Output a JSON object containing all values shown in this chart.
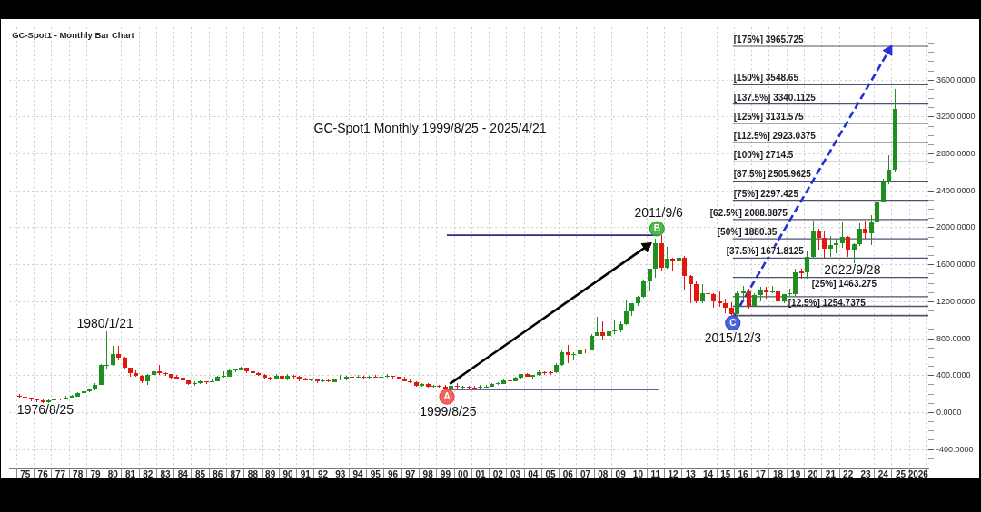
{
  "chart_data": {
    "type": "candlestick",
    "title": "GC-Spot1 - Monthly Bar Chart",
    "subtitle": "GC-Spot1 Monthly 1999/8/25 - 2025/4/21",
    "x": [
      "1975-03",
      "1975-07",
      "1975-11",
      "1976-03",
      "1976-07",
      "1976-11",
      "1977-03",
      "1977-07",
      "1977-11",
      "1978-03",
      "1978-07",
      "1978-11",
      "1979-03",
      "1979-07",
      "1979-11",
      "1980-03",
      "1980-07",
      "1980-11",
      "1981-03",
      "1981-07",
      "1981-11",
      "1982-03",
      "1982-07",
      "1982-11",
      "1983-03",
      "1983-07",
      "1983-11",
      "1984-03",
      "1984-07",
      "1984-11",
      "1985-03",
      "1985-07",
      "1985-11",
      "1986-03",
      "1986-07",
      "1986-11",
      "1987-03",
      "1987-07",
      "1987-11",
      "1988-03",
      "1988-07",
      "1988-11",
      "1989-03",
      "1989-07",
      "1989-11",
      "1990-03",
      "1990-07",
      "1990-11",
      "1991-03",
      "1991-07",
      "1991-11",
      "1992-03",
      "1992-07",
      "1992-11",
      "1993-03",
      "1993-07",
      "1993-11",
      "1994-03",
      "1994-07",
      "1994-11",
      "1995-03",
      "1995-07",
      "1995-11",
      "1996-03",
      "1996-07",
      "1996-11",
      "1997-03",
      "1997-07",
      "1997-11",
      "1998-03",
      "1998-07",
      "1998-11",
      "1999-03",
      "1999-07",
      "1999-11",
      "2000-03",
      "2000-07",
      "2000-11",
      "2001-03",
      "2001-07",
      "2001-11",
      "2002-03",
      "2002-07",
      "2002-11",
      "2003-03",
      "2003-07",
      "2003-11",
      "2004-03",
      "2004-07",
      "2004-11",
      "2005-03",
      "2005-07",
      "2005-11",
      "2006-03",
      "2006-07",
      "2006-11",
      "2007-03",
      "2007-07",
      "2007-11",
      "2008-03",
      "2008-07",
      "2008-11",
      "2009-03",
      "2009-07",
      "2009-11",
      "2010-03",
      "2010-07",
      "2010-11",
      "2011-03",
      "2011-07",
      "2011-11",
      "2012-03",
      "2012-07",
      "2012-11",
      "2013-03",
      "2013-07",
      "2013-11",
      "2014-03",
      "2014-07",
      "2014-11",
      "2015-03",
      "2015-07",
      "2015-11",
      "2016-03",
      "2016-07",
      "2016-11",
      "2017-03",
      "2017-07",
      "2017-11",
      "2018-03",
      "2018-07",
      "2018-11",
      "2019-03",
      "2019-07",
      "2019-11",
      "2020-03",
      "2020-07",
      "2020-11",
      "2021-03",
      "2021-07",
      "2021-11",
      "2022-03",
      "2022-07",
      "2022-11",
      "2023-03",
      "2023-07",
      "2023-11",
      "2024-03",
      "2024-07",
      "2024-11",
      "2025-03"
    ],
    "ohlc": [
      [
        183,
        198,
        165,
        167
      ],
      [
        168,
        172,
        147,
        158
      ],
      [
        162,
        165,
        125,
        140
      ],
      [
        140,
        141,
        113,
        128
      ],
      [
        128,
        143,
        104,
        110
      ],
      [
        110,
        149,
        107,
        134
      ],
      [
        134,
        164,
        130,
        149
      ],
      [
        152,
        156,
        130,
        142
      ],
      [
        145,
        180,
        145,
        165
      ],
      [
        165,
        190,
        160,
        177
      ],
      [
        171,
        223,
        170,
        208
      ],
      [
        208,
        245,
        193,
        226
      ],
      [
        226,
        261,
        218,
        246
      ],
      [
        246,
        315,
        245,
        300
      ],
      [
        300,
        527,
        300,
        512
      ],
      [
        512,
        875,
        470,
        517
      ],
      [
        517,
        720,
        505,
        630
      ],
      [
        630,
        725,
        560,
        590
      ],
      [
        590,
        600,
        470,
        485
      ],
      [
        485,
        490,
        391,
        425
      ],
      [
        425,
        460,
        390,
        400
      ],
      [
        400,
        405,
        315,
        335
      ],
      [
        335,
        415,
        297,
        410
      ],
      [
        410,
        490,
        395,
        450
      ],
      [
        450,
        512,
        405,
        430
      ],
      [
        430,
        440,
        400,
        415
      ],
      [
        415,
        420,
        365,
        380
      ],
      [
        388,
        405,
        365,
        372
      ],
      [
        378,
        395,
        335,
        345
      ],
      [
        345,
        350,
        295,
        310
      ],
      [
        310,
        340,
        285,
        322
      ],
      [
        322,
        345,
        305,
        335
      ],
      [
        336,
        340,
        310,
        325
      ],
      [
        326,
        358,
        325,
        343
      ],
      [
        343,
        400,
        335,
        385
      ],
      [
        385,
        445,
        378,
        395
      ],
      [
        390,
        470,
        390,
        455
      ],
      [
        452,
        470,
        440,
        462
      ],
      [
        460,
        500,
        455,
        485
      ],
      [
        485,
        487,
        430,
        450
      ],
      [
        450,
        460,
        415,
        430
      ],
      [
        430,
        435,
        395,
        410
      ],
      [
        410,
        415,
        365,
        380
      ],
      [
        380,
        385,
        345,
        360
      ],
      [
        360,
        420,
        355,
        401
      ],
      [
        401,
        425,
        365,
        368
      ],
      [
        368,
        415,
        345,
        395
      ],
      [
        395,
        410,
        370,
        385
      ],
      [
        385,
        395,
        342,
        357
      ],
      [
        360,
        375,
        345,
        350
      ],
      [
        352,
        368,
        340,
        362
      ],
      [
        360,
        362,
        323,
        338
      ],
      [
        336,
        357,
        328,
        346
      ],
      [
        346,
        357,
        328,
        334
      ],
      [
        333,
        370,
        326,
        355
      ],
      [
        355,
        408,
        350,
        372
      ],
      [
        372,
        395,
        345,
        390
      ],
      [
        390,
        397,
        362,
        377
      ],
      [
        377,
        405,
        375,
        390
      ],
      [
        392,
        400,
        368,
        380
      ],
      [
        380,
        397,
        368,
        392
      ],
      [
        392,
        405,
        378,
        381
      ],
      [
        381,
        402,
        378,
        391
      ],
      [
        385,
        416,
        380,
        397
      ],
      [
        397,
        400,
        372,
        384
      ],
      [
        387,
        390,
        354,
        369
      ],
      [
        369,
        384,
        338,
        340
      ],
      [
        340,
        355,
        318,
        325
      ],
      [
        325,
        340,
        283,
        290
      ],
      [
        290,
        316,
        275,
        308
      ],
      [
        308,
        323,
        272,
        275
      ],
      [
        275,
        303,
        272,
        288
      ],
      [
        290,
        303,
        274,
        279
      ],
      [
        283,
        298,
        252,
        255
      ],
      [
        255,
        338,
        254,
        290
      ],
      [
        290,
        316,
        262,
        276
      ],
      [
        272,
        292,
        262,
        283
      ],
      [
        280,
        292,
        260,
        270
      ],
      [
        273,
        287,
        255,
        262
      ],
      [
        265,
        297,
        255,
        277
      ],
      [
        272,
        295,
        268,
        284
      ],
      [
        277,
        323,
        276,
        308
      ],
      [
        305,
        330,
        298,
        318
      ],
      [
        312,
        362,
        310,
        347
      ],
      [
        347,
        390,
        320,
        336
      ],
      [
        336,
        390,
        335,
        375
      ],
      [
        375,
        417,
        360,
        415
      ],
      [
        415,
        430,
        385,
        388
      ],
      [
        388,
        410,
        372,
        407
      ],
      [
        407,
        455,
        400,
        438
      ],
      [
        440,
        448,
        410,
        428
      ],
      [
        438,
        445,
        412,
        426
      ],
      [
        433,
        538,
        430,
        513
      ],
      [
        513,
        668,
        510,
        653
      ],
      [
        653,
        732,
        540,
        623
      ],
      [
        623,
        650,
        560,
        635
      ],
      [
        635,
        700,
        605,
        680
      ],
      [
        685,
        695,
        640,
        668
      ],
      [
        672,
        845,
        670,
        834
      ],
      [
        834,
        1033,
        830,
        870
      ],
      [
        870,
        990,
        780,
        830
      ],
      [
        830,
        935,
        681,
        880
      ],
      [
        880,
        1007,
        850,
        885
      ],
      [
        885,
        990,
        865,
        955
      ],
      [
        955,
        1227,
        950,
        1095
      ],
      [
        1095,
        1180,
        1045,
        1180
      ],
      [
        1180,
        1265,
        1155,
        1248
      ],
      [
        1248,
        1436,
        1245,
        1420
      ],
      [
        1420,
        1557,
        1309,
        1556
      ],
      [
        1556,
        1877,
        1462,
        1828
      ],
      [
        1828,
        1920,
        1535,
        1565
      ],
      [
        1565,
        1790,
        1560,
        1664
      ],
      [
        1664,
        1680,
        1527,
        1648
      ],
      [
        1648,
        1796,
        1635,
        1675
      ],
      [
        1675,
        1697,
        1321,
        1475
      ],
      [
        1475,
        1488,
        1180,
        1395
      ],
      [
        1395,
        1434,
        1180,
        1202
      ],
      [
        1202,
        1392,
        1182,
        1288
      ],
      [
        1295,
        1345,
        1240,
        1280
      ],
      [
        1287,
        1290,
        1131,
        1200
      ],
      [
        1200,
        1307,
        1142,
        1184
      ],
      [
        1184,
        1232,
        1077,
        1135
      ],
      [
        1135,
        1192,
        1046,
        1061
      ],
      [
        1061,
        1310,
        1061,
        1292
      ],
      [
        1292,
        1375,
        1200,
        1308
      ],
      [
        1308,
        1337,
        1123,
        1151
      ],
      [
        1151,
        1296,
        1146,
        1268
      ],
      [
        1268,
        1358,
        1204,
        1320
      ],
      [
        1320,
        1357,
        1236,
        1302
      ],
      [
        1302,
        1366,
        1290,
        1316
      ],
      [
        1316,
        1326,
        1160,
        1201
      ],
      [
        1201,
        1284,
        1180,
        1282
      ],
      [
        1278,
        1346,
        1262,
        1292
      ],
      [
        1284,
        1555,
        1266,
        1520
      ],
      [
        1525,
        1557,
        1446,
        1510
      ],
      [
        1517,
        1747,
        1451,
        1686
      ],
      [
        1686,
        2075,
        1670,
        1968
      ],
      [
        1968,
        1993,
        1764,
        1895
      ],
      [
        1895,
        1960,
        1677,
        1770
      ],
      [
        1770,
        1916,
        1690,
        1813
      ],
      [
        1813,
        1877,
        1721,
        1829
      ],
      [
        1829,
        2070,
        1780,
        1897
      ],
      [
        1897,
        1909,
        1681,
        1765
      ],
      [
        1765,
        1830,
        1615,
        1824
      ],
      [
        1824,
        2048,
        1805,
        1990
      ],
      [
        1990,
        2079,
        1885,
        1940
      ],
      [
        1940,
        2135,
        1810,
        2063
      ],
      [
        2063,
        2431,
        1984,
        2286
      ],
      [
        2286,
        2531,
        2277,
        2503
      ],
      [
        2503,
        2790,
        2471,
        2624
      ],
      [
        2624,
        3500,
        2614,
        3290
      ]
    ],
    "colors": [
      "#e3170d",
      "#e3170d",
      "#e3170d",
      "#e3170d",
      "#e3170d",
      "#1f8f1f",
      "#1f8f1f",
      "#e3170d",
      "#1f8f1f",
      "#1f8f1f",
      "#1f8f1f",
      "#1f8f1f",
      "#1f8f1f",
      "#1f8f1f",
      "#1f8f1f",
      "#1f8f1f",
      "#1f8f1f",
      "#e3170d",
      "#e3170d",
      "#e3170d",
      "#e3170d",
      "#e3170d",
      "#1f8f1f",
      "#1f8f1f",
      "#e3170d",
      "#e3170d",
      "#e3170d",
      "#e3170d",
      "#e3170d",
      "#e3170d",
      "#1f8f1f",
      "#1f8f1f",
      "#e3170d",
      "#1f8f1f",
      "#1f8f1f",
      "#1f8f1f",
      "#1f8f1f",
      "#1f8f1f",
      "#1f8f1f",
      "#e3170d",
      "#e3170d",
      "#e3170d",
      "#e3170d",
      "#e3170d",
      "#1f8f1f",
      "#e3170d",
      "#1f8f1f",
      "#e3170d",
      "#e3170d",
      "#e3170d",
      "#1f8f1f",
      "#e3170d",
      "#1f8f1f",
      "#e3170d",
      "#1f8f1f",
      "#1f8f1f",
      "#1f8f1f",
      "#e3170d",
      "#1f8f1f",
      "#e3170d",
      "#1f8f1f",
      "#e3170d",
      "#1f8f1f",
      "#1f8f1f",
      "#e3170d",
      "#e3170d",
      "#e3170d",
      "#e3170d",
      "#e3170d",
      "#1f8f1f",
      "#e3170d",
      "#1f8f1f",
      "#e3170d",
      "#e3170d",
      "#1f8f1f",
      "#e3170d",
      "#1f8f1f",
      "#e3170d",
      "#e3170d",
      "#1f8f1f",
      "#1f8f1f",
      "#1f8f1f",
      "#1f8f1f",
      "#1f8f1f",
      "#e3170d",
      "#1f8f1f",
      "#1f8f1f",
      "#e3170d",
      "#1f8f1f",
      "#1f8f1f",
      "#e3170d",
      "#e3170d",
      "#1f8f1f",
      "#1f8f1f",
      "#e3170d",
      "#1f8f1f",
      "#1f8f1f",
      "#e3170d",
      "#1f8f1f",
      "#1f8f1f",
      "#e3170d",
      "#1f8f1f",
      "#1f8f1f",
      "#1f8f1f",
      "#1f8f1f",
      "#1f8f1f",
      "#1f8f1f",
      "#1f8f1f",
      "#1f8f1f",
      "#1f8f1f",
      "#e3170d",
      "#1f8f1f",
      "#e3170d",
      "#1f8f1f",
      "#e3170d",
      "#e3170d",
      "#e3170d",
      "#1f8f1f",
      "#e3170d",
      "#e3170d",
      "#e3170d",
      "#e3170d",
      "#e3170d",
      "#1f8f1f",
      "#1f8f1f",
      "#e3170d",
      "#1f8f1f",
      "#1f8f1f",
      "#e3170d",
      "#1f8f1f",
      "#e3170d",
      "#1f8f1f",
      "#1f8f1f",
      "#1f8f1f",
      "#e3170d",
      "#1f8f1f",
      "#1f8f1f",
      "#e3170d",
      "#e3170d",
      "#1f8f1f",
      "#1f8f1f",
      "#1f8f1f",
      "#e3170d",
      "#1f8f1f",
      "#1f8f1f",
      "#e3170d",
      "#1f8f1f",
      "#1f8f1f",
      "#1f8f1f",
      "#1f8f1f",
      "#1f8f1f"
    ],
    "series": [
      {
        "type": "line",
        "x": [
          "1999-08",
          "2011-09"
        ],
        "values": [
          1920,
          1920
        ],
        "color": "#2a2a80"
      },
      {
        "type": "line",
        "x": [
          "1999-08",
          "2011-09"
        ],
        "values": [
          250,
          250
        ],
        "color": "#2a2a80"
      },
      {
        "type": "line",
        "x": [
          "1999-10",
          "2011-01"
        ],
        "values": [
          310,
          1800
        ],
        "color": "#000000",
        "marker": "triangle"
      },
      {
        "type": "line",
        "x": [
          "2016-01",
          "2024-11"
        ],
        "values": [
          1050,
          3920
        ],
        "color": "#2431d6",
        "line_style": "dashed",
        "marker": "triangle"
      },
      {
        "type": "line",
        "name": "[175%] 3965.725",
        "x": [
          "2015-12",
          "2027-02"
        ],
        "values": [
          3965.725,
          3965.725
        ],
        "color": "#50506e"
      },
      {
        "type": "line",
        "name": "[150%] 3548.65",
        "x": [
          "2015-12",
          "2027-02"
        ],
        "values": [
          3548.65,
          3548.65
        ],
        "color": "#50506e"
      },
      {
        "type": "line",
        "name": "[137.5%] 3340.1125",
        "x": [
          "2015-12",
          "2027-02"
        ],
        "values": [
          3340.1125,
          3340.1125
        ],
        "color": "#50506e"
      },
      {
        "type": "line",
        "name": "[125%] 3131.575",
        "x": [
          "2015-12",
          "2027-02"
        ],
        "values": [
          3131.575,
          3131.575
        ],
        "color": "#50506e"
      },
      {
        "type": "line",
        "name": "[112.5%] 2923.0375",
        "x": [
          "2015-12",
          "2027-02"
        ],
        "values": [
          2923.0375,
          2923.0375
        ],
        "color": "#50506e"
      },
      {
        "type": "line",
        "name": "[100%] 2714.5",
        "x": [
          "2015-12",
          "2027-02"
        ],
        "values": [
          2714.5,
          2714.5
        ],
        "color": "#50506e"
      },
      {
        "type": "line",
        "name": "[87.5%] 2505.9625",
        "x": [
          "2015-12",
          "2027-02"
        ],
        "values": [
          2505.9625,
          2505.9625
        ],
        "color": "#50506e"
      },
      {
        "type": "line",
        "name": "[75%] 2297.425",
        "x": [
          "2015-12",
          "2027-02"
        ],
        "values": [
          2297.425,
          2297.425
        ],
        "color": "#50506e"
      },
      {
        "type": "line",
        "name": "[62.5%] 2088.8875",
        "x": [
          "2015-12",
          "2027-02"
        ],
        "values": [
          2088.8875,
          2088.8875
        ],
        "color": "#50506e"
      },
      {
        "type": "line",
        "name": "[50%] 1880.35",
        "x": [
          "2015-12",
          "2027-02"
        ],
        "values": [
          1880.35,
          1880.35
        ],
        "color": "#50506e"
      },
      {
        "type": "line",
        "name": "[37.5%] 1671.8125",
        "x": [
          "2015-12",
          "2027-02"
        ],
        "values": [
          1671.8125,
          1671.8125
        ],
        "color": "#50506e"
      },
      {
        "type": "line",
        "name": "[25%] 1463.275",
        "x": [
          "2015-12",
          "2027-02"
        ],
        "values": [
          1463.275,
          1463.275
        ],
        "color": "#50506e"
      },
      {
        "type": "line",
        "name": "[12.5%] 1254.7375",
        "x": [
          "2015-12",
          "2027-02"
        ],
        "values": [
          1254.7375,
          1254.7375
        ],
        "color": "#50506e"
      },
      {
        "type": "line",
        "x": [
          "2015-12",
          "2027-02"
        ],
        "values": [
          1150,
          1150
        ],
        "color": "#50506e"
      },
      {
        "type": "line",
        "x": [
          "2015-12",
          "2027-02"
        ],
        "values": [
          1050,
          1050
        ],
        "color": "#50506e"
      },
      {
        "type": "scatter",
        "x": [
          "1999-08",
          "2011-08",
          "2015-12"
        ],
        "values": [
          170,
          1990,
          970
        ],
        "colors": [
          "#f04848",
          "#30a830",
          "#3048d0"
        ],
        "marker": "circle"
      }
    ],
    "annotations": [
      {
        "text": "1976/8/25",
        "x": "1976-08-25",
        "y": 104
      },
      {
        "text": "1980/1/21",
        "x": "1980-01-21",
        "y": 875
      },
      {
        "text": "1999/8/25",
        "x": "1999-08-25",
        "y": 252
      },
      {
        "text": "2011/9/6",
        "x": "2011-09-06",
        "y": 1920
      },
      {
        "text": "2015/12/3",
        "x": "2015-12-03",
        "y": 1046
      },
      {
        "text": "2022/9/28",
        "x": "2022-09-28",
        "y": 1615
      },
      {
        "text": "A",
        "x": "1999-08",
        "y": 170
      },
      {
        "text": "B",
        "x": "2011-08",
        "y": 1990
      },
      {
        "text": "C",
        "x": "2015-12",
        "y": 970
      }
    ],
    "xlim": [
      "1974-08",
      "2027-02"
    ],
    "xticks": [
      {
        "value": "1975-07",
        "label": "75"
      },
      {
        "value": "1976-07",
        "label": "76"
      },
      {
        "value": "1977-07",
        "label": "77"
      },
      {
        "value": "1978-07",
        "label": "78"
      },
      {
        "value": "1979-07",
        "label": "79"
      },
      {
        "value": "1980-07",
        "label": "80"
      },
      {
        "value": "1981-07",
        "label": "81"
      },
      {
        "value": "1982-07",
        "label": "82"
      },
      {
        "value": "1983-07",
        "label": "83"
      },
      {
        "value": "1984-07",
        "label": "84"
      },
      {
        "value": "1985-07",
        "label": "85"
      },
      {
        "value": "1986-07",
        "label": "86"
      },
      {
        "value": "1987-07",
        "label": "87"
      },
      {
        "value": "1988-07",
        "label": "88"
      },
      {
        "value": "1989-07",
        "label": "89"
      },
      {
        "value": "1990-07",
        "label": "90"
      },
      {
        "value": "1991-07",
        "label": "91"
      },
      {
        "value": "1992-07",
        "label": "92"
      },
      {
        "value": "1993-07",
        "label": "93"
      },
      {
        "value": "1994-07",
        "label": "94"
      },
      {
        "value": "1995-07",
        "label": "95"
      },
      {
        "value": "1996-07",
        "label": "96"
      },
      {
        "value": "1997-07",
        "label": "97"
      },
      {
        "value": "1998-07",
        "label": "98"
      },
      {
        "value": "1999-07",
        "label": "99"
      },
      {
        "value": "2000-07",
        "label": "00"
      },
      {
        "value": "2001-07",
        "label": "01"
      },
      {
        "value": "2002-07",
        "label": "02"
      },
      {
        "value": "2003-07",
        "label": "03"
      },
      {
        "value": "2004-07",
        "label": "04"
      },
      {
        "value": "2005-07",
        "label": "05"
      },
      {
        "value": "2006-07",
        "label": "06"
      },
      {
        "value": "2007-07",
        "label": "07"
      },
      {
        "value": "2008-07",
        "label": "08"
      },
      {
        "value": "2009-07",
        "label": "09"
      },
      {
        "value": "2010-07",
        "label": "10"
      },
      {
        "value": "2011-07",
        "label": "11"
      },
      {
        "value": "2012-07",
        "label": "12"
      },
      {
        "value": "2013-07",
        "label": "13"
      },
      {
        "value": "2014-07",
        "label": "14"
      },
      {
        "value": "2015-07",
        "label": "15"
      },
      {
        "value": "2016-07",
        "label": "16"
      },
      {
        "value": "2017-07",
        "label": "17"
      },
      {
        "value": "2018-07",
        "label": "18"
      },
      {
        "value": "2019-07",
        "label": "19"
      },
      {
        "value": "2020-07",
        "label": "20"
      },
      {
        "value": "2021-07",
        "label": "21"
      },
      {
        "value": "2022-07",
        "label": "22"
      },
      {
        "value": "2023-07",
        "label": "23"
      },
      {
        "value": "2024-07",
        "label": "24"
      },
      {
        "value": "2025-07",
        "label": "25"
      },
      {
        "value": "2026-07",
        "label": "2026"
      }
    ],
    "ylim": [
      -610,
      4170
    ],
    "yticks": [
      {
        "value": -600,
        "label": null
      },
      {
        "value": -500,
        "label": null
      },
      {
        "value": -400,
        "label": "-400.0000"
      },
      {
        "value": -300,
        "label": null
      },
      {
        "value": -200,
        "label": null
      },
      {
        "value": -100,
        "label": null
      },
      {
        "value": 0,
        "label": "0.0000"
      },
      {
        "value": 100,
        "label": null
      },
      {
        "value": 200,
        "label": null
      },
      {
        "value": 300,
        "label": null
      },
      {
        "value": 400,
        "label": "400.0000"
      },
      {
        "value": 500,
        "label": null
      },
      {
        "value": 600,
        "label": null
      },
      {
        "value": 700,
        "label": null
      },
      {
        "value": 800,
        "label": "800.0000"
      },
      {
        "value": 900,
        "label": null
      },
      {
        "value": 1000,
        "label": null
      },
      {
        "value": 1100,
        "label": null
      },
      {
        "value": 1200,
        "label": "1200.0000"
      },
      {
        "value": 1300,
        "label": null
      },
      {
        "value": 1400,
        "label": null
      },
      {
        "value": 1500,
        "label": null
      },
      {
        "value": 1600,
        "label": "1600.0000"
      },
      {
        "value": 1700,
        "label": null
      },
      {
        "value": 1800,
        "label": null
      },
      {
        "value": 1900,
        "label": null
      },
      {
        "value": 2000,
        "label": "2000.0000"
      },
      {
        "value": 2100,
        "label": null
      },
      {
        "value": 2200,
        "label": null
      },
      {
        "value": 2300,
        "label": null
      },
      {
        "value": 2400,
        "label": "2400.0000"
      },
      {
        "value": 2500,
        "label": null
      },
      {
        "value": 2600,
        "label": null
      },
      {
        "value": 2700,
        "label": null
      },
      {
        "value": 2800,
        "label": "2800.0000"
      },
      {
        "value": 2900,
        "label": null
      },
      {
        "value": 3000,
        "label": null
      },
      {
        "value": 3100,
        "label": null
      },
      {
        "value": 3200,
        "label": "3200.0000"
      },
      {
        "value": 3300,
        "label": null
      },
      {
        "value": 3400,
        "label": null
      },
      {
        "value": 3500,
        "label": null
      },
      {
        "value": 3600,
        "label": "3600.0000"
      },
      {
        "value": 3700,
        "label": null
      },
      {
        "value": 3800,
        "label": null
      },
      {
        "value": 3900,
        "label": null
      },
      {
        "value": 4000,
        "label": null
      },
      {
        "value": 4100,
        "label": null
      }
    ],
    "grid": true
  }
}
